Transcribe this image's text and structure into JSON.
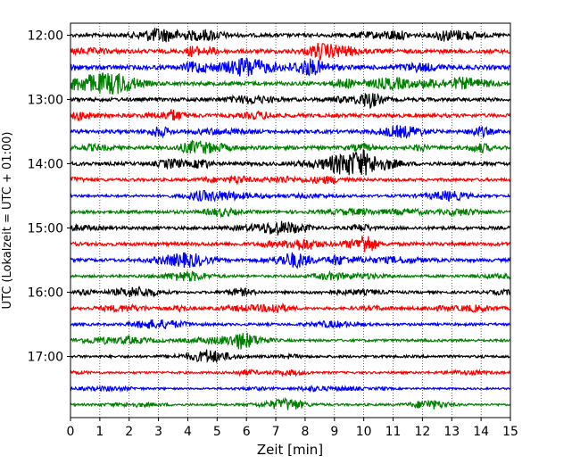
{
  "chart_data": {
    "type": "line",
    "title": "",
    "xlabel": "Zeit  [min]",
    "ylabel": "UTC (Lokalzeit = UTC + 01:00)",
    "xlim": [
      0,
      15
    ],
    "x_ticks": [
      "0",
      "1",
      "2",
      "3",
      "4",
      "5",
      "6",
      "7",
      "8",
      "9",
      "10",
      "11",
      "12",
      "13",
      "14",
      "15"
    ],
    "y_ticks": [
      "12:00",
      "13:00",
      "14:00",
      "15:00",
      "16:00",
      "17:00"
    ],
    "grid": "vertical-dotted",
    "trace_colors": [
      "#000000",
      "#ff0000",
      "#0000ff",
      "#008000"
    ],
    "trace_count": 24,
    "trace_interval_min": 15,
    "start_time": "12:00",
    "series": [
      {
        "time": "12:00",
        "color": "#000000",
        "amp": 1.0
      },
      {
        "time": "12:15",
        "color": "#ff0000",
        "amp": 1.1
      },
      {
        "time": "12:30",
        "color": "#0000ff",
        "amp": 1.2
      },
      {
        "time": "12:45",
        "color": "#008000",
        "amp": 1.1
      },
      {
        "time": "13:00",
        "color": "#000000",
        "amp": 1.0
      },
      {
        "time": "13:15",
        "color": "#ff0000",
        "amp": 1.0
      },
      {
        "time": "13:30",
        "color": "#0000ff",
        "amp": 1.0
      },
      {
        "time": "13:45",
        "color": "#008000",
        "amp": 1.0
      },
      {
        "time": "14:00",
        "color": "#000000",
        "amp": 1.0
      },
      {
        "time": "14:15",
        "color": "#ff0000",
        "amp": 0.8
      },
      {
        "time": "14:30",
        "color": "#0000ff",
        "amp": 0.7
      },
      {
        "time": "14:45",
        "color": "#008000",
        "amp": 0.9
      },
      {
        "time": "15:00",
        "color": "#000000",
        "amp": 0.9
      },
      {
        "time": "15:15",
        "color": "#ff0000",
        "amp": 1.0
      },
      {
        "time": "15:30",
        "color": "#0000ff",
        "amp": 0.9
      },
      {
        "time": "15:45",
        "color": "#008000",
        "amp": 0.7
      },
      {
        "time": "16:00",
        "color": "#000000",
        "amp": 0.7
      },
      {
        "time": "16:15",
        "color": "#ff0000",
        "amp": 0.7
      },
      {
        "time": "16:30",
        "color": "#0000ff",
        "amp": 0.7
      },
      {
        "time": "16:45",
        "color": "#008000",
        "amp": 0.7
      },
      {
        "time": "17:00",
        "color": "#000000",
        "amp": 0.7
      },
      {
        "time": "17:15",
        "color": "#ff0000",
        "amp": 0.6
      },
      {
        "time": "17:30",
        "color": "#0000ff",
        "amp": 0.5
      },
      {
        "time": "17:45",
        "color": "#008000",
        "amp": 0.6
      }
    ]
  }
}
